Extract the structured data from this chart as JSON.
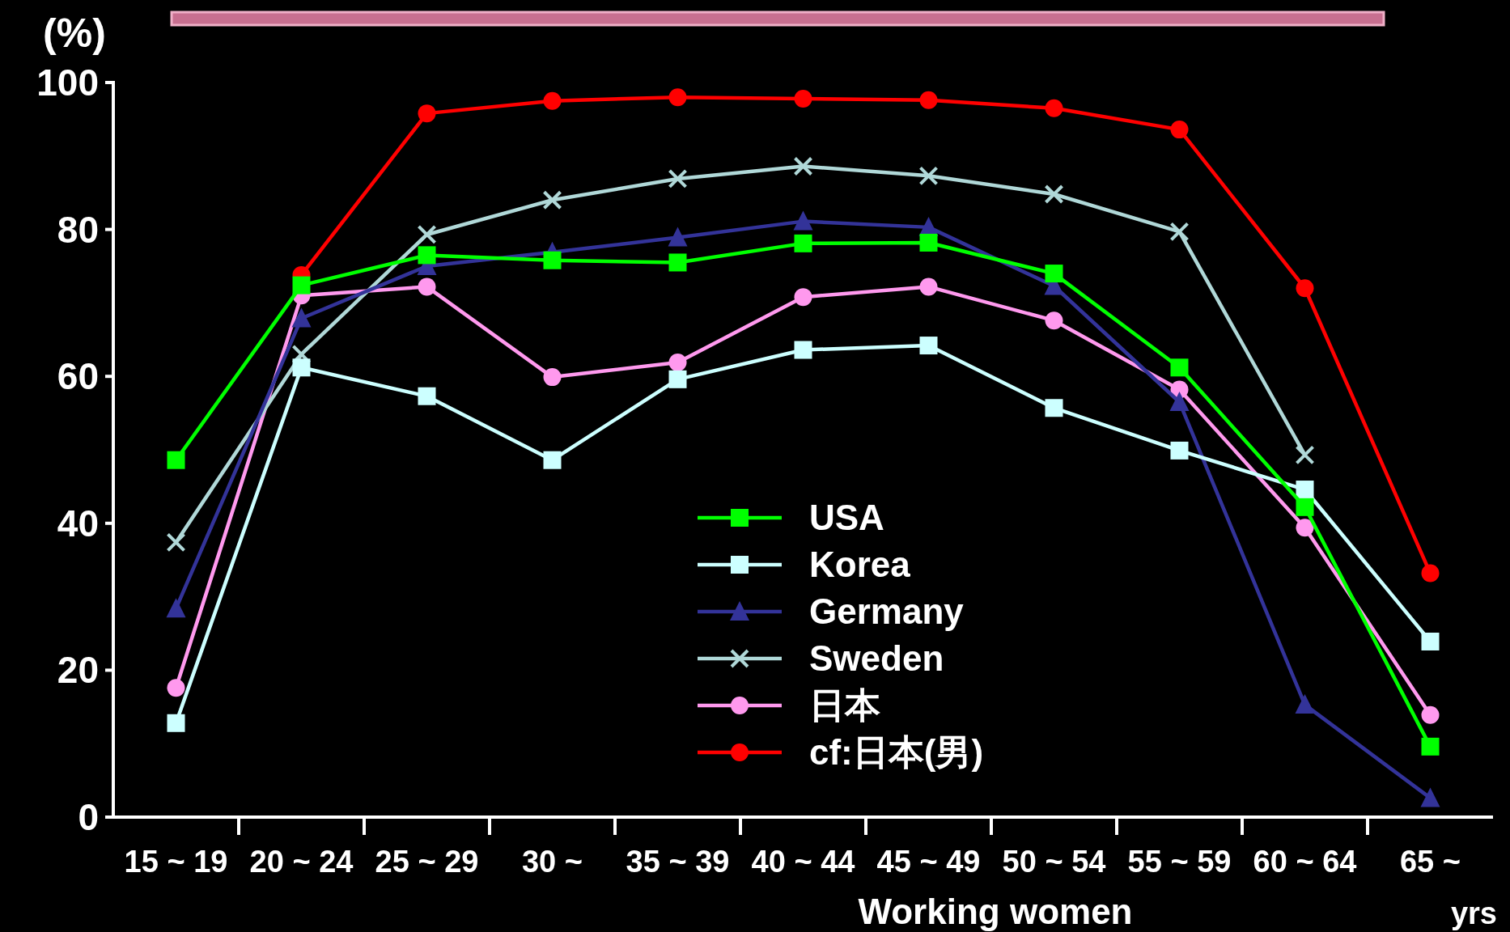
{
  "chart_data": {
    "type": "line",
    "ylabel": "(%)",
    "xlabel": "Working women",
    "annotations": [
      "yrs"
    ],
    "categories": [
      "15 ~ 19",
      "20 ~ 24",
      "25 ~ 29",
      "30 ~",
      "35 ~ 39",
      "40 ~ 44",
      "45 ~ 49",
      "50 ~ 54",
      "55 ~ 59",
      "60 ~ 64",
      "65 ~"
    ],
    "ylim": [
      0,
      100
    ],
    "yticks": [
      0,
      20,
      40,
      60,
      80,
      100
    ],
    "grid": false,
    "legend": "bottom",
    "series": [
      {
        "name": "USA",
        "color": "#00ff00",
        "marker": "square",
        "values": [
          48.6,
          72.4,
          76.5,
          75.8,
          75.5,
          78.1,
          78.2,
          74.0,
          61.2,
          42.2,
          9.6
        ]
      },
      {
        "name": "Korea",
        "color": "#ccffff",
        "marker": "square",
        "values": [
          12.8,
          61.2,
          57.3,
          48.6,
          59.6,
          63.6,
          64.2,
          55.7,
          49.9,
          44.6,
          23.9
        ]
      },
      {
        "name": "Germany",
        "color": "#333399",
        "marker": "triangle",
        "values": [
          28.4,
          67.9,
          75.0,
          76.9,
          78.9,
          81.1,
          80.3,
          72.3,
          56.5,
          15.3,
          2.6
        ]
      },
      {
        "name": "Sweden",
        "color": "#b0d8d8",
        "marker": "cross",
        "values": [
          37.4,
          63.0,
          79.3,
          84.0,
          86.9,
          88.6,
          87.3,
          84.8,
          79.7,
          49.3,
          null
        ]
      },
      {
        "name": "日本",
        "color": "#ff99ee",
        "marker": "circle",
        "values": [
          17.6,
          71.0,
          72.2,
          59.9,
          61.9,
          70.8,
          72.2,
          67.6,
          58.2,
          39.4,
          13.9
        ]
      },
      {
        "name": "cf:日本(男)",
        "color": "#ff0000",
        "marker": "circle",
        "values": [
          null,
          73.8,
          95.8,
          97.5,
          98.0,
          97.8,
          97.6,
          96.5,
          93.6,
          72.0,
          33.2
        ]
      }
    ]
  }
}
